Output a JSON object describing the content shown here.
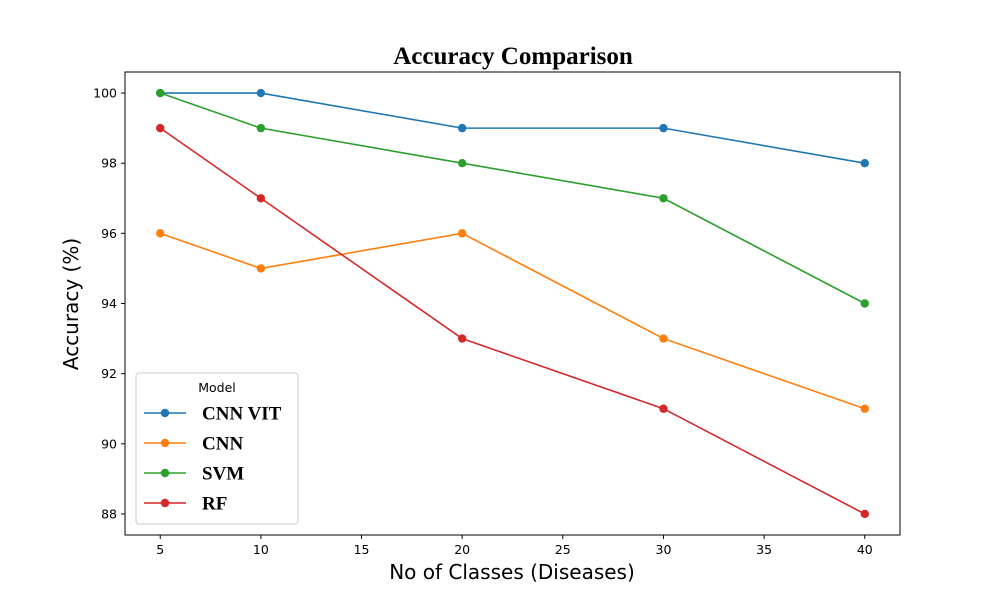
{
  "chart_data": {
    "type": "line",
    "title": "Accuracy Comparison",
    "xlabel": "No of Classes (Diseases)",
    "ylabel": "Accuracy (%)",
    "x": [
      5,
      10,
      20,
      30,
      40
    ],
    "xlim": [
      3.25,
      41.75
    ],
    "ylim": [
      87.4,
      100.6
    ],
    "xticks": [
      5,
      10,
      15,
      20,
      25,
      30,
      35,
      40
    ],
    "yticks": [
      88,
      90,
      92,
      94,
      96,
      98,
      100
    ],
    "grid": false,
    "legend": {
      "title": "Model",
      "placement": "lower-left"
    },
    "series": [
      {
        "name": "CNN VIT",
        "color": "#1f77b4",
        "values": [
          100,
          100,
          99,
          99,
          98
        ]
      },
      {
        "name": "CNN",
        "color": "#ff7f0e",
        "values": [
          96,
          95,
          96,
          93,
          91
        ]
      },
      {
        "name": "SVM",
        "color": "#2ca02c",
        "values": [
          100,
          99,
          98,
          97,
          94
        ]
      },
      {
        "name": "RF",
        "color": "#d62728",
        "values": [
          99,
          97,
          93,
          91,
          88
        ]
      }
    ]
  }
}
